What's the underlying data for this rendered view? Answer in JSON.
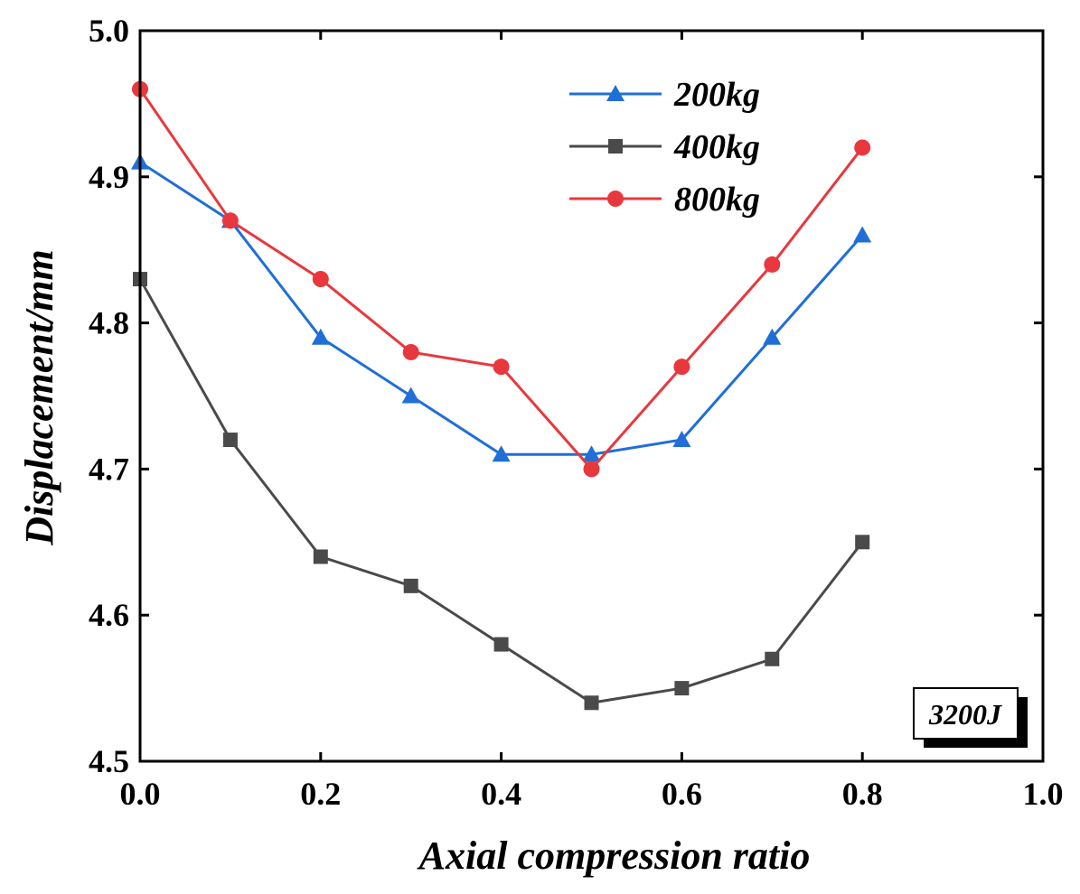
{
  "chart_data": {
    "type": "line",
    "x": [
      0.0,
      0.1,
      0.2,
      0.3,
      0.4,
      0.5,
      0.6,
      0.7,
      0.8
    ],
    "series": [
      {
        "name": "200kg",
        "color": "#1f6fd6",
        "marker": "triangle",
        "values": [
          4.91,
          4.87,
          4.79,
          4.75,
          4.71,
          4.71,
          4.72,
          4.79,
          4.86
        ]
      },
      {
        "name": "400kg",
        "color": "#4a4a4a",
        "marker": "square",
        "values": [
          4.83,
          4.72,
          4.64,
          4.62,
          4.58,
          4.54,
          4.55,
          4.57,
          4.65
        ]
      },
      {
        "name": "800kg",
        "color": "#e8383d",
        "marker": "circle",
        "values": [
          4.96,
          4.87,
          4.83,
          4.78,
          4.77,
          4.7,
          4.77,
          4.84,
          4.92
        ]
      }
    ],
    "xlabel": "Axial compression ratio",
    "ylabel": "Displacement/mm",
    "xlim": [
      0.0,
      1.0
    ],
    "ylim": [
      4.5,
      5.0
    ],
    "xticks": [
      "0.0",
      "0.2",
      "0.4",
      "0.6",
      "0.8",
      "1.0"
    ],
    "yticks": [
      "4.5",
      "4.6",
      "4.7",
      "4.8",
      "4.9",
      "5.0"
    ],
    "legend_position": "top-center",
    "annotation": "3200J",
    "grid": false
  }
}
